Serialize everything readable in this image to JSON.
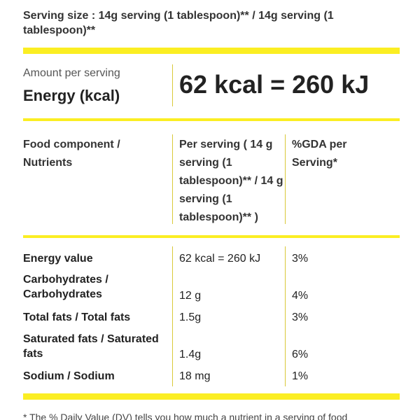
{
  "colors": {
    "accent_bar": "#fbee23",
    "divider": "#d9c93a"
  },
  "serving_size": "Serving size : 14g serving (1 tablespoon)** / 14g serving (1 tablespoon)**",
  "energy": {
    "amount_label": "Amount per serving",
    "label": "Energy (kcal)",
    "value": "62 kcal = 260 kJ"
  },
  "table": {
    "headers": {
      "component": "Food component / Nutrients",
      "per_serving": "Per serving ( 14 g serving (1 tablespoon)** / 14 g serving (1 tablespoon)** )",
      "gda": "%GDA per Serving*"
    },
    "rows": [
      {
        "name": "Energy value",
        "value": "62 kcal = 260 kJ",
        "gda": "3%"
      },
      {
        "name": "Carbohydrates / Carbohydrates",
        "value": "12 g",
        "gda": "4%"
      },
      {
        "name": "Total fats / Total fats",
        "value": "1.5g",
        "gda": "3%"
      },
      {
        "name": "Saturated fats / Saturated fats",
        "value": "1.4g",
        "gda": "6%"
      },
      {
        "name": "Sodium / Sodium",
        "value": "18 mg",
        "gda": "1%"
      }
    ]
  },
  "footnote": "* The % Daily Value (DV) tells you how much a nutrient in a serving of food"
}
